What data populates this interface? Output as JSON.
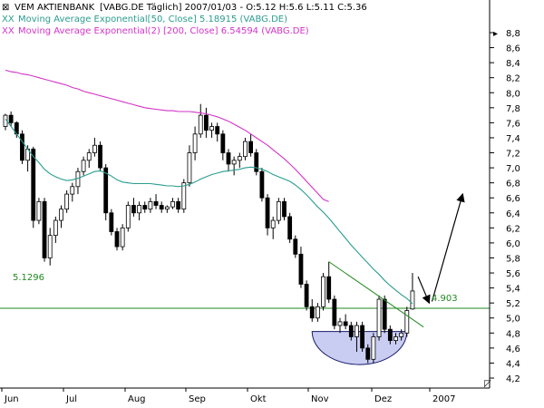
{
  "header": {
    "title_icon": "expand-xx-icon",
    "title": "VEM AKTIENBANK",
    "title_meta": "[VABG.DE  Täglich] 2007/01/03 - O:5.12 H:5.6 L:5.11 C:5.36",
    "legend": [
      {
        "marker": "XX",
        "label": "Moving Average Exponential[50, Close] 5.18915 (VABG.DE)",
        "color": "#2a9d8f"
      },
      {
        "marker": "XX",
        "label": "Moving Average Exponential(2) [200, Close] 6.54594 (VABG.DE)",
        "color": "#d433c8"
      }
    ]
  },
  "chart_data": {
    "type": "candlestick",
    "symbol": "VABG.DE",
    "x_months": [
      "Jun",
      "Jul",
      "Aug",
      "Sep",
      "Okt",
      "Nov",
      "Dez",
      "2007"
    ],
    "y_axis": {
      "min": 4.2,
      "max": 8.8,
      "step": 0.2,
      "position": "right"
    },
    "y_ticks": [
      "8,8",
      "8,6",
      "8,4",
      "8,2",
      "8,0",
      "7,8",
      "7,6",
      "7,4",
      "7,2",
      "7,0",
      "6,8",
      "6,6",
      "6,4",
      "6,2",
      "6,0",
      "5,8",
      "5,6",
      "5,4",
      "5,2",
      "5,0",
      "4,8",
      "4,6",
      "4,4",
      "4,2"
    ],
    "grid": false,
    "candles_ohlc": [
      [
        7.55,
        7.72,
        7.5,
        7.7
      ],
      [
        7.7,
        7.75,
        7.55,
        7.6
      ],
      [
        7.6,
        7.62,
        7.4,
        7.45
      ],
      [
        7.45,
        7.5,
        7.05,
        7.1
      ],
      [
        7.1,
        7.3,
        6.95,
        7.25
      ],
      [
        7.25,
        7.28,
        6.2,
        6.3
      ],
      [
        6.3,
        6.6,
        6.25,
        6.55
      ],
      [
        6.55,
        6.6,
        5.75,
        5.8
      ],
      [
        5.8,
        6.2,
        5.7,
        6.1
      ],
      [
        6.1,
        6.35,
        6.0,
        6.3
      ],
      [
        6.3,
        6.5,
        6.2,
        6.45
      ],
      [
        6.45,
        6.7,
        6.4,
        6.65
      ],
      [
        6.65,
        6.8,
        6.55,
        6.75
      ],
      [
        6.75,
        7.0,
        6.65,
        6.95
      ],
      [
        6.95,
        7.15,
        6.9,
        7.1
      ],
      [
        7.1,
        7.25,
        7.0,
        7.2
      ],
      [
        7.2,
        7.4,
        7.15,
        7.3
      ],
      [
        7.3,
        7.35,
        6.95,
        7.0
      ],
      [
        7.0,
        7.05,
        6.3,
        6.4
      ],
      [
        6.4,
        6.45,
        6.1,
        6.15
      ],
      [
        6.15,
        6.2,
        5.9,
        5.95
      ],
      [
        5.95,
        6.25,
        5.9,
        6.2
      ],
      [
        6.2,
        6.55,
        6.15,
        6.5
      ],
      [
        6.5,
        6.6,
        6.35,
        6.4
      ],
      [
        6.4,
        6.55,
        6.3,
        6.5
      ],
      [
        6.5,
        6.55,
        6.4,
        6.45
      ],
      [
        6.45,
        6.6,
        6.4,
        6.55
      ],
      [
        6.55,
        6.65,
        6.45,
        6.5
      ],
      [
        6.5,
        6.55,
        6.4,
        6.45
      ],
      [
        6.45,
        6.5,
        6.4,
        6.48
      ],
      [
        6.48,
        6.6,
        6.45,
        6.55
      ],
      [
        6.55,
        6.6,
        6.4,
        6.45
      ],
      [
        6.45,
        6.85,
        6.4,
        6.8
      ],
      [
        6.8,
        7.3,
        6.75,
        7.2
      ],
      [
        7.2,
        7.55,
        7.1,
        7.45
      ],
      [
        7.45,
        7.85,
        7.4,
        7.7
      ],
      [
        7.7,
        7.8,
        7.4,
        7.5
      ],
      [
        7.5,
        7.6,
        7.4,
        7.55
      ],
      [
        7.55,
        7.6,
        7.35,
        7.45
      ],
      [
        7.45,
        7.5,
        7.1,
        7.2
      ],
      [
        7.2,
        7.25,
        6.95,
        7.05
      ],
      [
        7.05,
        7.15,
        6.9,
        7.1
      ],
      [
        7.1,
        7.2,
        7.0,
        7.15
      ],
      [
        7.15,
        7.4,
        7.1,
        7.35
      ],
      [
        7.35,
        7.45,
        7.15,
        7.2
      ],
      [
        7.2,
        7.25,
        6.9,
        6.95
      ],
      [
        6.95,
        7.0,
        6.55,
        6.6
      ],
      [
        6.6,
        6.65,
        6.1,
        6.2
      ],
      [
        6.2,
        6.35,
        6.05,
        6.3
      ],
      [
        6.3,
        6.6,
        6.25,
        6.55
      ],
      [
        6.55,
        6.6,
        6.3,
        6.35
      ],
      [
        6.35,
        6.4,
        6.0,
        6.05
      ],
      [
        6.05,
        6.1,
        5.8,
        5.85
      ],
      [
        5.85,
        5.95,
        5.4,
        5.45
      ],
      [
        5.45,
        5.5,
        5.1,
        5.15
      ],
      [
        5.15,
        5.25,
        4.95,
        5.0
      ],
      [
        5.0,
        5.2,
        4.95,
        5.15
      ],
      [
        5.15,
        5.6,
        5.1,
        5.55
      ],
      [
        5.55,
        5.75,
        5.2,
        5.25
      ],
      [
        5.25,
        5.3,
        4.85,
        4.9
      ],
      [
        4.9,
        5.0,
        4.8,
        4.95
      ],
      [
        4.95,
        5.05,
        4.85,
        4.9
      ],
      [
        4.9,
        4.95,
        4.7,
        4.75
      ],
      [
        4.75,
        4.95,
        4.55,
        4.9
      ],
      [
        4.9,
        4.95,
        4.55,
        4.6
      ],
      [
        4.6,
        4.65,
        4.4,
        4.45
      ],
      [
        4.45,
        4.8,
        4.4,
        4.75
      ],
      [
        4.75,
        5.3,
        4.7,
        5.25
      ],
      [
        5.25,
        5.3,
        4.8,
        4.85
      ],
      [
        4.85,
        4.9,
        4.65,
        4.7
      ],
      [
        4.7,
        4.8,
        4.65,
        4.75
      ],
      [
        4.75,
        4.85,
        4.7,
        4.8
      ],
      [
        4.8,
        5.15,
        4.75,
        5.1
      ],
      [
        5.12,
        5.6,
        5.11,
        5.36
      ]
    ],
    "ema50": [
      7.65,
      7.55,
      7.45,
      7.35,
      7.25,
      7.15,
      7.07,
      6.98,
      6.92,
      6.88,
      6.85,
      6.83,
      6.84,
      6.86,
      6.89,
      6.92,
      6.95,
      6.96,
      6.93,
      6.89,
      6.84,
      6.81,
      6.8,
      6.79,
      6.79,
      6.79,
      6.79,
      6.78,
      6.77,
      6.76,
      6.76,
      6.75,
      6.76,
      6.78,
      6.81,
      6.85,
      6.88,
      6.91,
      6.93,
      6.95,
      6.96,
      6.97,
      6.98,
      7.0,
      7.01,
      7.0,
      6.98,
      6.95,
      6.91,
      6.88,
      6.85,
      6.82,
      6.77,
      6.71,
      6.64,
      6.56,
      6.48,
      6.41,
      6.33,
      6.24,
      6.15,
      6.06,
      5.97,
      5.89,
      5.81,
      5.73,
      5.65,
      5.58,
      5.5,
      5.43,
      5.37,
      5.31,
      5.26,
      5.19
    ],
    "ema200": [
      8.3,
      8.28,
      8.27,
      8.25,
      8.24,
      8.22,
      8.2,
      8.18,
      8.16,
      8.14,
      8.12,
      8.1,
      8.07,
      8.05,
      8.02,
      8.0,
      7.98,
      7.96,
      7.94,
      7.92,
      7.9,
      7.88,
      7.86,
      7.84,
      7.82,
      7.8,
      7.79,
      7.78,
      7.77,
      7.76,
      7.76,
      7.75,
      7.75,
      7.75,
      7.74,
      7.73,
      7.72,
      7.7,
      7.68,
      7.65,
      7.62,
      7.58,
      7.54,
      7.5,
      7.45,
      7.4,
      7.35,
      7.3,
      7.24,
      7.18,
      7.12,
      7.05,
      6.98,
      6.9,
      6.82,
      6.74,
      6.66,
      6.58,
      6.55
    ],
    "horizontal_line": {
      "value": 5.1296,
      "label": "5.1296",
      "color": "#1f8a1f"
    },
    "trendline": {
      "from": {
        "index": 58,
        "value": 5.75
      },
      "to": {
        "index": 75,
        "value": 4.88
      },
      "color": "#1f8a1f"
    },
    "trendline_label": "4.903",
    "cup_pattern": {
      "from_index": 55,
      "to_index": 72,
      "top": 4.82,
      "bottom": 4.38,
      "fill": "#c9cdf2"
    },
    "projection_arrows": [
      {
        "from": {
          "index": 74,
          "value": 5.55
        },
        "to": {
          "index": 76,
          "value": 5.2
        }
      },
      {
        "from": {
          "index": 76.5,
          "value": 5.22
        },
        "to": {
          "index": 82,
          "value": 6.65
        }
      }
    ]
  }
}
